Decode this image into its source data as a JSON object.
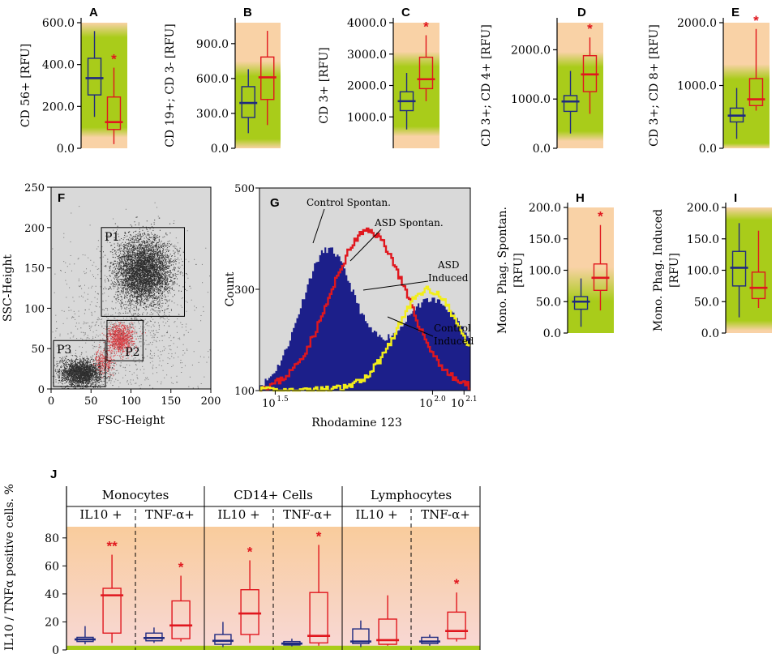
{
  "colors": {
    "control": "#1f2a80",
    "asd": "#e0171e",
    "star": "#e0171e",
    "green": "#a9cc1a",
    "peach": "#f9d2a6",
    "pink": "#f8d4cc",
    "gray_bg": "#d9d9d9",
    "navy_fill": "#1c1f8a",
    "yellow": "#f2ee1a"
  },
  "chart_data": [
    {
      "id": "A",
      "type": "box",
      "letter": "A",
      "ylabel": "CD 56+ [RFU]",
      "ylim": [
        0,
        600
      ],
      "ticks": [
        0,
        200,
        400,
        600
      ],
      "tick_labels": [
        "0.0",
        "200.0",
        "400.0",
        "600.0"
      ],
      "bg": {
        "type": "green_center",
        "green_from": 100,
        "green_to": 530
      },
      "boxes": [
        {
          "group": "Control",
          "min": 150,
          "q1": 255,
          "median": 335,
          "q3": 430,
          "max": 560
        },
        {
          "group": "ASD",
          "min": 20,
          "q1": 90,
          "median": 125,
          "q3": 245,
          "max": 385,
          "sig": "*"
        }
      ]
    },
    {
      "id": "B",
      "type": "box",
      "letter": "B",
      "ylabel": "CD 19+; CD 3- [RFU]",
      "ylim": [
        0,
        1080
      ],
      "ticks": [
        0,
        300,
        600,
        900
      ],
      "tick_labels": [
        "0.0",
        "300.0",
        "600.0",
        "900.0"
      ],
      "bg": {
        "type": "green_center",
        "green_from": 80,
        "green_to": 620
      },
      "boxes": [
        {
          "group": "Control",
          "min": 130,
          "q1": 265,
          "median": 390,
          "q3": 530,
          "max": 680
        },
        {
          "group": "ASD",
          "min": 200,
          "q1": 420,
          "median": 610,
          "q3": 785,
          "max": 1010
        }
      ]
    },
    {
      "id": "C",
      "type": "box",
      "letter": "C",
      "ylabel": "CD 3+ [RFU]",
      "ylim": [
        0,
        4000
      ],
      "ticks": [
        1000,
        2000,
        3000,
        4000
      ],
      "tick_labels": [
        "1000.0",
        "2000.0",
        "3000.0",
        "4000.0"
      ],
      "bg": {
        "type": "green_center",
        "green_from": 700,
        "green_to": 2600
      },
      "boxes": [
        {
          "group": "Control",
          "min": 600,
          "q1": 1200,
          "median": 1500,
          "q3": 1800,
          "max": 2400
        },
        {
          "group": "ASD",
          "min": 1500,
          "q1": 1900,
          "median": 2200,
          "q3": 2900,
          "max": 3600,
          "sig": "*"
        }
      ]
    },
    {
      "id": "D",
      "type": "box",
      "letter": "D",
      "ylabel": "CD 3+; CD 4+ [RFU]",
      "ylim": [
        0,
        2550
      ],
      "ticks": [
        0,
        1000,
        2000
      ],
      "tick_labels": [
        "0.0",
        "1000.0",
        "2000.0"
      ],
      "bg": {
        "type": "green_center",
        "green_from": 350,
        "green_to": 1650
      },
      "boxes": [
        {
          "group": "Control",
          "min": 300,
          "q1": 750,
          "median": 950,
          "q3": 1070,
          "max": 1570
        },
        {
          "group": "ASD",
          "min": 700,
          "q1": 1150,
          "median": 1500,
          "q3": 1880,
          "max": 2250,
          "sig": "*"
        }
      ]
    },
    {
      "id": "E",
      "type": "box",
      "letter": "E",
      "ylabel": "CD 3+; CD 8+ [RFU]",
      "ylim": [
        0,
        2000
      ],
      "ticks": [
        0,
        1000,
        2000
      ],
      "tick_labels": [
        "0.0",
        "1000.0",
        "2000.0"
      ],
      "bg": {
        "type": "green_center",
        "green_from": 80,
        "green_to": 1100
      },
      "boxes": [
        {
          "group": "Control",
          "min": 150,
          "q1": 420,
          "median": 520,
          "q3": 640,
          "max": 960
        },
        {
          "group": "ASD",
          "min": 600,
          "q1": 680,
          "median": 780,
          "q3": 1110,
          "max": 1900,
          "sig": "*"
        }
      ]
    },
    {
      "id": "H",
      "type": "box",
      "letter": "H",
      "ylabel_lines": [
        "Mono. Phag.  Spontan.",
        "[RFU]"
      ],
      "ylim": [
        0,
        200
      ],
      "ticks": [
        0,
        50,
        100,
        150,
        200
      ],
      "tick_labels": [
        "0.0",
        "50.0",
        "100.0",
        "150.0",
        "200.0"
      ],
      "bg": {
        "type": "green_bottom",
        "green_to": 75
      },
      "boxes": [
        {
          "group": "Control",
          "min": 10,
          "q1": 38,
          "median": 50,
          "q3": 58,
          "max": 87
        },
        {
          "group": "ASD",
          "min": 36,
          "q1": 68,
          "median": 88,
          "q3": 110,
          "max": 172,
          "sig": "*"
        }
      ]
    },
    {
      "id": "I",
      "type": "box",
      "letter": "I",
      "ylabel_lines": [
        "Mono. Phag.  Induced",
        "[RFU]"
      ],
      "ylim": [
        0,
        200
      ],
      "ticks": [
        0,
        50,
        100,
        150,
        200
      ],
      "tick_labels": [
        "0.0",
        "50.0",
        "100.0",
        "150.0",
        "200.0"
      ],
      "bg": {
        "type": "green_center",
        "green_from": 20,
        "green_to": 180
      },
      "boxes": [
        {
          "group": "Control",
          "min": 25,
          "q1": 75,
          "median": 104,
          "q3": 130,
          "max": 175
        },
        {
          "group": "ASD",
          "min": 40,
          "q1": 55,
          "median": 72,
          "q3": 97,
          "max": 163
        }
      ]
    },
    {
      "id": "F",
      "type": "scatter",
      "letter": "F",
      "xlabel": "FSC-Height",
      "ylabel": "SSC-Height",
      "xlim": [
        0,
        200
      ],
      "ylim": [
        0,
        250
      ],
      "xticks": [
        0,
        50,
        100,
        150,
        200
      ],
      "yticks": [
        0,
        50,
        100,
        150,
        200,
        250
      ],
      "gates": [
        {
          "name": "P1",
          "x0": 63,
          "x1": 167,
          "y0": 90,
          "y1": 200
        },
        {
          "name": "P2",
          "x0": 70,
          "x1": 115,
          "y0": 35,
          "y1": 85
        },
        {
          "name": "P3",
          "x0": 3,
          "x1": 68,
          "y0": 3,
          "y1": 60
        }
      ],
      "clusters": [
        {
          "name": "P1",
          "cx": 115,
          "cy": 147,
          "sx": 17,
          "sy": 20,
          "n": 4800,
          "color": "control"
        },
        {
          "name": "P3",
          "cx": 37,
          "cy": 20,
          "sx": 13,
          "sy": 8,
          "n": 2400,
          "color": "control"
        },
        {
          "name": "P2",
          "cx": 86,
          "cy": 62,
          "sx": 8,
          "sy": 9,
          "n": 1000,
          "color": "asd"
        },
        {
          "name": "bridge",
          "cx": 66,
          "cy": 35,
          "sx": 6,
          "sy": 8,
          "n": 260,
          "color": "asd"
        },
        {
          "name": "background",
          "cx": 95,
          "cy": 80,
          "sx": 45,
          "sy": 55,
          "n": 1300,
          "color": "control"
        }
      ]
    },
    {
      "id": "G",
      "type": "histogram",
      "letter": "G",
      "xlabel": "Rhodamine 123",
      "ylabel": "Count",
      "xlim_log": [
        1.45,
        2.12
      ],
      "ylim": [
        100,
        500
      ],
      "yticks": [
        100,
        300,
        500
      ],
      "xtick_labels": [
        {
          "base": "10",
          "exp": "1.5",
          "v": 1.5
        },
        {
          "base": "10",
          "exp": "2.0",
          "v": 2.0
        },
        {
          "base": "10",
          "exp": "2.1",
          "v": 2.1
        }
      ],
      "annotations": [
        "Control Spontan.",
        "ASD Spontan.",
        "ASD",
        "Induced",
        "Control",
        "Induced"
      ],
      "series": [
        {
          "name": "Control Spontan.",
          "kind": "filled",
          "color": "navy_fill",
          "components": [
            {
              "mu": 1.67,
              "sd": 0.085,
              "amp": 275
            },
            {
              "mu": 2.0,
              "sd": 0.12,
              "amp": 165
            }
          ]
        },
        {
          "name": "Control Induced",
          "kind": "filled",
          "color": "navy_fill",
          "components": [
            {
              "mu": 2.0,
              "sd": 0.11,
              "amp": 180
            }
          ]
        },
        {
          "name": "ASD Spontan.",
          "kind": "line",
          "color": "asd",
          "components": [
            {
              "mu": 1.8,
              "sd": 0.12,
              "amp": 315
            }
          ]
        },
        {
          "name": "ASD Induced",
          "kind": "line",
          "color": "yellow",
          "components": [
            {
              "mu": 1.99,
              "sd": 0.1,
              "amp": 200
            }
          ]
        }
      ]
    },
    {
      "id": "J",
      "type": "box",
      "letter": "J",
      "ylabel": "IL10 / TNFα positive cells. %",
      "ylim": [
        0,
        88
      ],
      "ticks": [
        0,
        20,
        40,
        60,
        80
      ],
      "tick_labels": [
        "0",
        "20",
        "40",
        "60",
        "80"
      ],
      "groups": [
        "Monocytes",
        "CD14+ Cells",
        "Lymphocytes"
      ],
      "subgroups": [
        "IL10 +",
        "TNF-α+"
      ],
      "boxes": [
        {
          "cell": "Monocytes",
          "marker": "IL10 +",
          "group": "Control",
          "min": 4,
          "q1": 6,
          "median": 7.5,
          "q3": 9,
          "max": 17
        },
        {
          "cell": "Monocytes",
          "marker": "IL10 +",
          "group": "ASD",
          "min": 5,
          "q1": 12,
          "median": 39,
          "q3": 44,
          "max": 68,
          "sig": "**"
        },
        {
          "cell": "Monocytes",
          "marker": "TNF-α+",
          "group": "Control",
          "min": 5,
          "q1": 6.5,
          "median": 8.5,
          "q3": 12,
          "max": 16
        },
        {
          "cell": "Monocytes",
          "marker": "TNF-α+",
          "group": "ASD",
          "min": 6,
          "q1": 8,
          "median": 17.5,
          "q3": 35,
          "max": 53,
          "sig": "*"
        },
        {
          "cell": "CD14+ Cells",
          "marker": "IL10 +",
          "group": "Control",
          "min": 2,
          "q1": 4,
          "median": 6.5,
          "q3": 11,
          "max": 20
        },
        {
          "cell": "CD14+ Cells",
          "marker": "IL10 +",
          "group": "ASD",
          "min": 5,
          "q1": 11,
          "median": 26,
          "q3": 43,
          "max": 64,
          "sig": "*"
        },
        {
          "cell": "CD14+ Cells",
          "marker": "TNF-α+",
          "group": "Control",
          "min": 2.5,
          "q1": 3.5,
          "median": 4.5,
          "q3": 6,
          "max": 8
        },
        {
          "cell": "CD14+ Cells",
          "marker": "TNF-α+",
          "group": "ASD",
          "min": 3,
          "q1": 5,
          "median": 10,
          "q3": 41,
          "max": 75,
          "sig": "*"
        },
        {
          "cell": "Lymphocytes",
          "marker": "IL10 +",
          "group": "Control",
          "min": 2,
          "q1": 4.5,
          "median": 6,
          "q3": 15,
          "max": 21
        },
        {
          "cell": "Lymphocytes",
          "marker": "IL10 +",
          "group": "ASD",
          "min": 3,
          "q1": 4,
          "median": 7,
          "q3": 22,
          "max": 39
        },
        {
          "cell": "Lymphocytes",
          "marker": "TNF-α+",
          "group": "Control",
          "min": 3,
          "q1": 4.5,
          "median": 6,
          "q3": 9,
          "max": 11
        },
        {
          "cell": "Lymphocytes",
          "marker": "TNF-α+",
          "group": "ASD",
          "min": 6,
          "q1": 8,
          "median": 13.5,
          "q3": 27,
          "max": 41,
          "sig": "*"
        }
      ]
    }
  ]
}
